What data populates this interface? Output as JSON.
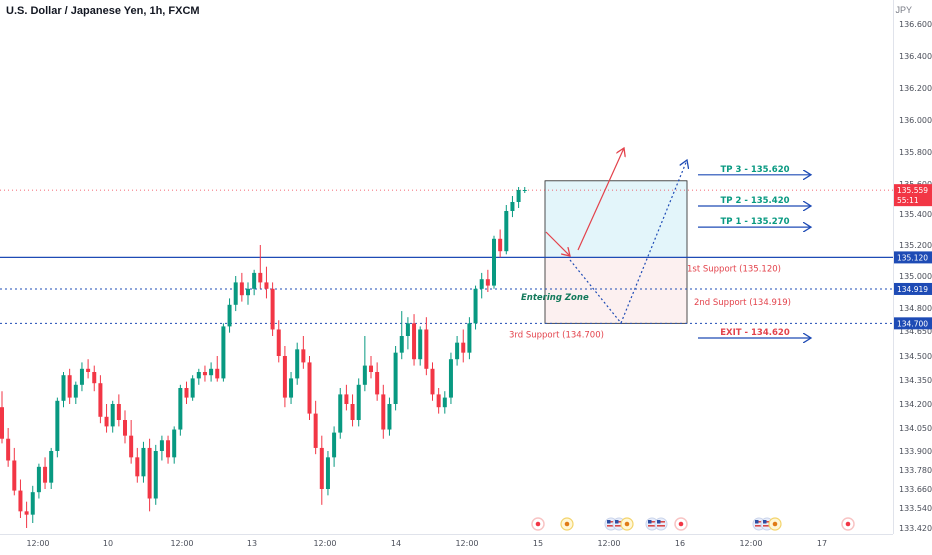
{
  "header": {
    "symbol_title": "U.S. Dollar / Japanese Yen, 1h, FXCM",
    "currency": "JPY"
  },
  "chart_data": {
    "type": "candlestick",
    "y_ticks": [
      136.6,
      136.4,
      136.2,
      136.0,
      135.8,
      135.6,
      135.4,
      135.2,
      135.0,
      134.8,
      134.65,
      134.5,
      134.35,
      134.2,
      134.05,
      133.9,
      133.78,
      133.66,
      133.54,
      133.42
    ],
    "x_ticks": [
      "12:00",
      "10",
      "12:00",
      "13",
      "12:00",
      "14",
      "12:00",
      "15",
      "12:00",
      "16",
      "12:00",
      "17"
    ],
    "colors": {
      "up": "#089981",
      "down": "#f23645",
      "level_line": "#1e4bb5",
      "zone_upper": "#e3f5fa",
      "zone_lower": "#fcf0f0",
      "annotation_red": "#e3424b"
    },
    "candles": [
      {
        "o": 134.18,
        "h": 134.28,
        "l": 133.95,
        "c": 133.98
      },
      {
        "o": 133.98,
        "h": 134.05,
        "l": 133.8,
        "c": 133.84
      },
      {
        "o": 133.84,
        "h": 133.92,
        "l": 133.62,
        "c": 133.65
      },
      {
        "o": 133.65,
        "h": 133.72,
        "l": 133.48,
        "c": 133.52
      },
      {
        "o": 133.52,
        "h": 133.58,
        "l": 133.42,
        "c": 133.5
      },
      {
        "o": 133.5,
        "h": 133.68,
        "l": 133.45,
        "c": 133.64
      },
      {
        "o": 133.64,
        "h": 133.82,
        "l": 133.6,
        "c": 133.8
      },
      {
        "o": 133.8,
        "h": 133.86,
        "l": 133.66,
        "c": 133.7
      },
      {
        "o": 133.7,
        "h": 133.92,
        "l": 133.66,
        "c": 133.9
      },
      {
        "o": 133.9,
        "h": 134.24,
        "l": 133.86,
        "c": 134.22
      },
      {
        "o": 134.22,
        "h": 134.4,
        "l": 134.18,
        "c": 134.38
      },
      {
        "o": 134.38,
        "h": 134.42,
        "l": 134.2,
        "c": 134.24
      },
      {
        "o": 134.24,
        "h": 134.34,
        "l": 134.2,
        "c": 134.32
      },
      {
        "o": 134.32,
        "h": 134.46,
        "l": 134.28,
        "c": 134.42
      },
      {
        "o": 134.42,
        "h": 134.48,
        "l": 134.36,
        "c": 134.4
      },
      {
        "o": 134.4,
        "h": 134.44,
        "l": 134.28,
        "c": 134.33
      },
      {
        "o": 134.33,
        "h": 134.38,
        "l": 134.08,
        "c": 134.12
      },
      {
        "o": 134.12,
        "h": 134.2,
        "l": 134.02,
        "c": 134.06
      },
      {
        "o": 134.06,
        "h": 134.22,
        "l": 134.02,
        "c": 134.2
      },
      {
        "o": 134.2,
        "h": 134.26,
        "l": 134.06,
        "c": 134.1
      },
      {
        "o": 134.1,
        "h": 134.16,
        "l": 133.95,
        "c": 134.0
      },
      {
        "o": 134.0,
        "h": 134.1,
        "l": 133.82,
        "c": 133.86
      },
      {
        "o": 133.86,
        "h": 133.92,
        "l": 133.7,
        "c": 133.74
      },
      {
        "o": 133.74,
        "h": 133.96,
        "l": 133.7,
        "c": 133.92
      },
      {
        "o": 133.92,
        "h": 133.98,
        "l": 133.52,
        "c": 133.6
      },
      {
        "o": 133.6,
        "h": 133.94,
        "l": 133.56,
        "c": 133.9
      },
      {
        "o": 133.9,
        "h": 134.0,
        "l": 133.84,
        "c": 133.97
      },
      {
        "o": 133.97,
        "h": 134.0,
        "l": 133.82,
        "c": 133.86
      },
      {
        "o": 133.86,
        "h": 134.06,
        "l": 133.82,
        "c": 134.04
      },
      {
        "o": 134.04,
        "h": 134.32,
        "l": 134.0,
        "c": 134.3
      },
      {
        "o": 134.3,
        "h": 134.34,
        "l": 134.2,
        "c": 134.24
      },
      {
        "o": 134.24,
        "h": 134.38,
        "l": 134.22,
        "c": 134.36
      },
      {
        "o": 134.36,
        "h": 134.42,
        "l": 134.32,
        "c": 134.4
      },
      {
        "o": 134.4,
        "h": 134.44,
        "l": 134.34,
        "c": 134.38
      },
      {
        "o": 134.38,
        "h": 134.46,
        "l": 134.34,
        "c": 134.42
      },
      {
        "o": 134.42,
        "h": 134.5,
        "l": 134.34,
        "c": 134.36
      },
      {
        "o": 134.36,
        "h": 134.7,
        "l": 134.34,
        "c": 134.68
      },
      {
        "o": 134.68,
        "h": 134.86,
        "l": 134.64,
        "c": 134.82
      },
      {
        "o": 134.82,
        "h": 135.0,
        "l": 134.78,
        "c": 134.96
      },
      {
        "o": 134.96,
        "h": 135.02,
        "l": 134.84,
        "c": 134.88
      },
      {
        "o": 134.88,
        "h": 134.96,
        "l": 134.82,
        "c": 134.92
      },
      {
        "o": 134.92,
        "h": 135.04,
        "l": 134.88,
        "c": 135.02
      },
      {
        "o": 135.02,
        "h": 135.2,
        "l": 134.92,
        "c": 134.96
      },
      {
        "o": 134.96,
        "h": 135.06,
        "l": 134.86,
        "c": 134.92
      },
      {
        "o": 134.92,
        "h": 134.96,
        "l": 134.62,
        "c": 134.66
      },
      {
        "o": 134.66,
        "h": 134.72,
        "l": 134.46,
        "c": 134.5
      },
      {
        "o": 134.5,
        "h": 134.56,
        "l": 134.18,
        "c": 134.24
      },
      {
        "o": 134.24,
        "h": 134.4,
        "l": 134.2,
        "c": 134.36
      },
      {
        "o": 134.36,
        "h": 134.58,
        "l": 134.32,
        "c": 134.54
      },
      {
        "o": 134.54,
        "h": 134.62,
        "l": 134.42,
        "c": 134.46
      },
      {
        "o": 134.46,
        "h": 134.5,
        "l": 134.1,
        "c": 134.14
      },
      {
        "o": 134.14,
        "h": 134.22,
        "l": 133.88,
        "c": 133.92
      },
      {
        "o": 133.92,
        "h": 134.0,
        "l": 133.56,
        "c": 133.66
      },
      {
        "o": 133.66,
        "h": 133.9,
        "l": 133.62,
        "c": 133.86
      },
      {
        "o": 133.86,
        "h": 134.06,
        "l": 133.8,
        "c": 134.02
      },
      {
        "o": 134.02,
        "h": 134.3,
        "l": 133.98,
        "c": 134.26
      },
      {
        "o": 134.26,
        "h": 134.32,
        "l": 134.16,
        "c": 134.2
      },
      {
        "o": 134.2,
        "h": 134.26,
        "l": 134.06,
        "c": 134.1
      },
      {
        "o": 134.1,
        "h": 134.36,
        "l": 134.06,
        "c": 134.32
      },
      {
        "o": 134.32,
        "h": 134.62,
        "l": 134.28,
        "c": 134.44
      },
      {
        "o": 134.44,
        "h": 134.5,
        "l": 134.36,
        "c": 134.4
      },
      {
        "o": 134.4,
        "h": 134.46,
        "l": 134.22,
        "c": 134.26
      },
      {
        "o": 134.26,
        "h": 134.32,
        "l": 133.98,
        "c": 134.04
      },
      {
        "o": 134.04,
        "h": 134.24,
        "l": 134.0,
        "c": 134.2
      },
      {
        "o": 134.2,
        "h": 134.56,
        "l": 134.16,
        "c": 134.52
      },
      {
        "o": 134.52,
        "h": 134.78,
        "l": 134.48,
        "c": 134.62
      },
      {
        "o": 134.62,
        "h": 134.74,
        "l": 134.54,
        "c": 134.7
      },
      {
        "o": 134.7,
        "h": 134.76,
        "l": 134.44,
        "c": 134.48
      },
      {
        "o": 134.48,
        "h": 134.68,
        "l": 134.44,
        "c": 134.66
      },
      {
        "o": 134.66,
        "h": 134.74,
        "l": 134.38,
        "c": 134.42
      },
      {
        "o": 134.42,
        "h": 134.46,
        "l": 134.22,
        "c": 134.26
      },
      {
        "o": 134.26,
        "h": 134.3,
        "l": 134.14,
        "c": 134.18
      },
      {
        "o": 134.18,
        "h": 134.28,
        "l": 134.14,
        "c": 134.24
      },
      {
        "o": 134.24,
        "h": 134.52,
        "l": 134.2,
        "c": 134.48
      },
      {
        "o": 134.48,
        "h": 134.62,
        "l": 134.44,
        "c": 134.58
      },
      {
        "o": 134.58,
        "h": 134.66,
        "l": 134.46,
        "c": 134.52
      },
      {
        "o": 134.52,
        "h": 134.74,
        "l": 134.48,
        "c": 134.7
      },
      {
        "o": 134.7,
        "h": 134.94,
        "l": 134.66,
        "c": 134.92
      },
      {
        "o": 134.92,
        "h": 135.02,
        "l": 134.86,
        "c": 134.98
      },
      {
        "o": 134.98,
        "h": 135.04,
        "l": 134.9,
        "c": 134.94
      },
      {
        "o": 134.94,
        "h": 135.26,
        "l": 134.92,
        "c": 135.24
      },
      {
        "o": 135.24,
        "h": 135.3,
        "l": 135.12,
        "c": 135.16
      },
      {
        "o": 135.16,
        "h": 135.46,
        "l": 135.14,
        "c": 135.42
      },
      {
        "o": 135.42,
        "h": 135.52,
        "l": 135.38,
        "c": 135.48
      },
      {
        "o": 135.48,
        "h": 135.58,
        "l": 135.44,
        "c": 135.56
      },
      {
        "o": 135.56,
        "h": 135.58,
        "l": 135.54,
        "c": 135.56
      }
    ],
    "levels": [
      {
        "price": 135.12,
        "style": "solid",
        "label": "135.120"
      },
      {
        "price": 134.919,
        "style": "dotted",
        "label": "134.919"
      },
      {
        "price": 134.7,
        "style": "dotted",
        "label": "134.700"
      }
    ],
    "current_price": {
      "price": 135.559,
      "label": "135.559",
      "countdown": "55:11"
    },
    "annotations": {
      "tp3": "TP 3 - 135.620",
      "tp2": "TP 2 - 135.420",
      "tp1": "TP 1 - 135.270",
      "support1": "1st Support (135.120)",
      "support2": "2nd Support (134.919)",
      "support3": "3rd Support (134.700)",
      "exit": "EXIT - 134.620",
      "entering_zone": "Entering Zone"
    }
  }
}
